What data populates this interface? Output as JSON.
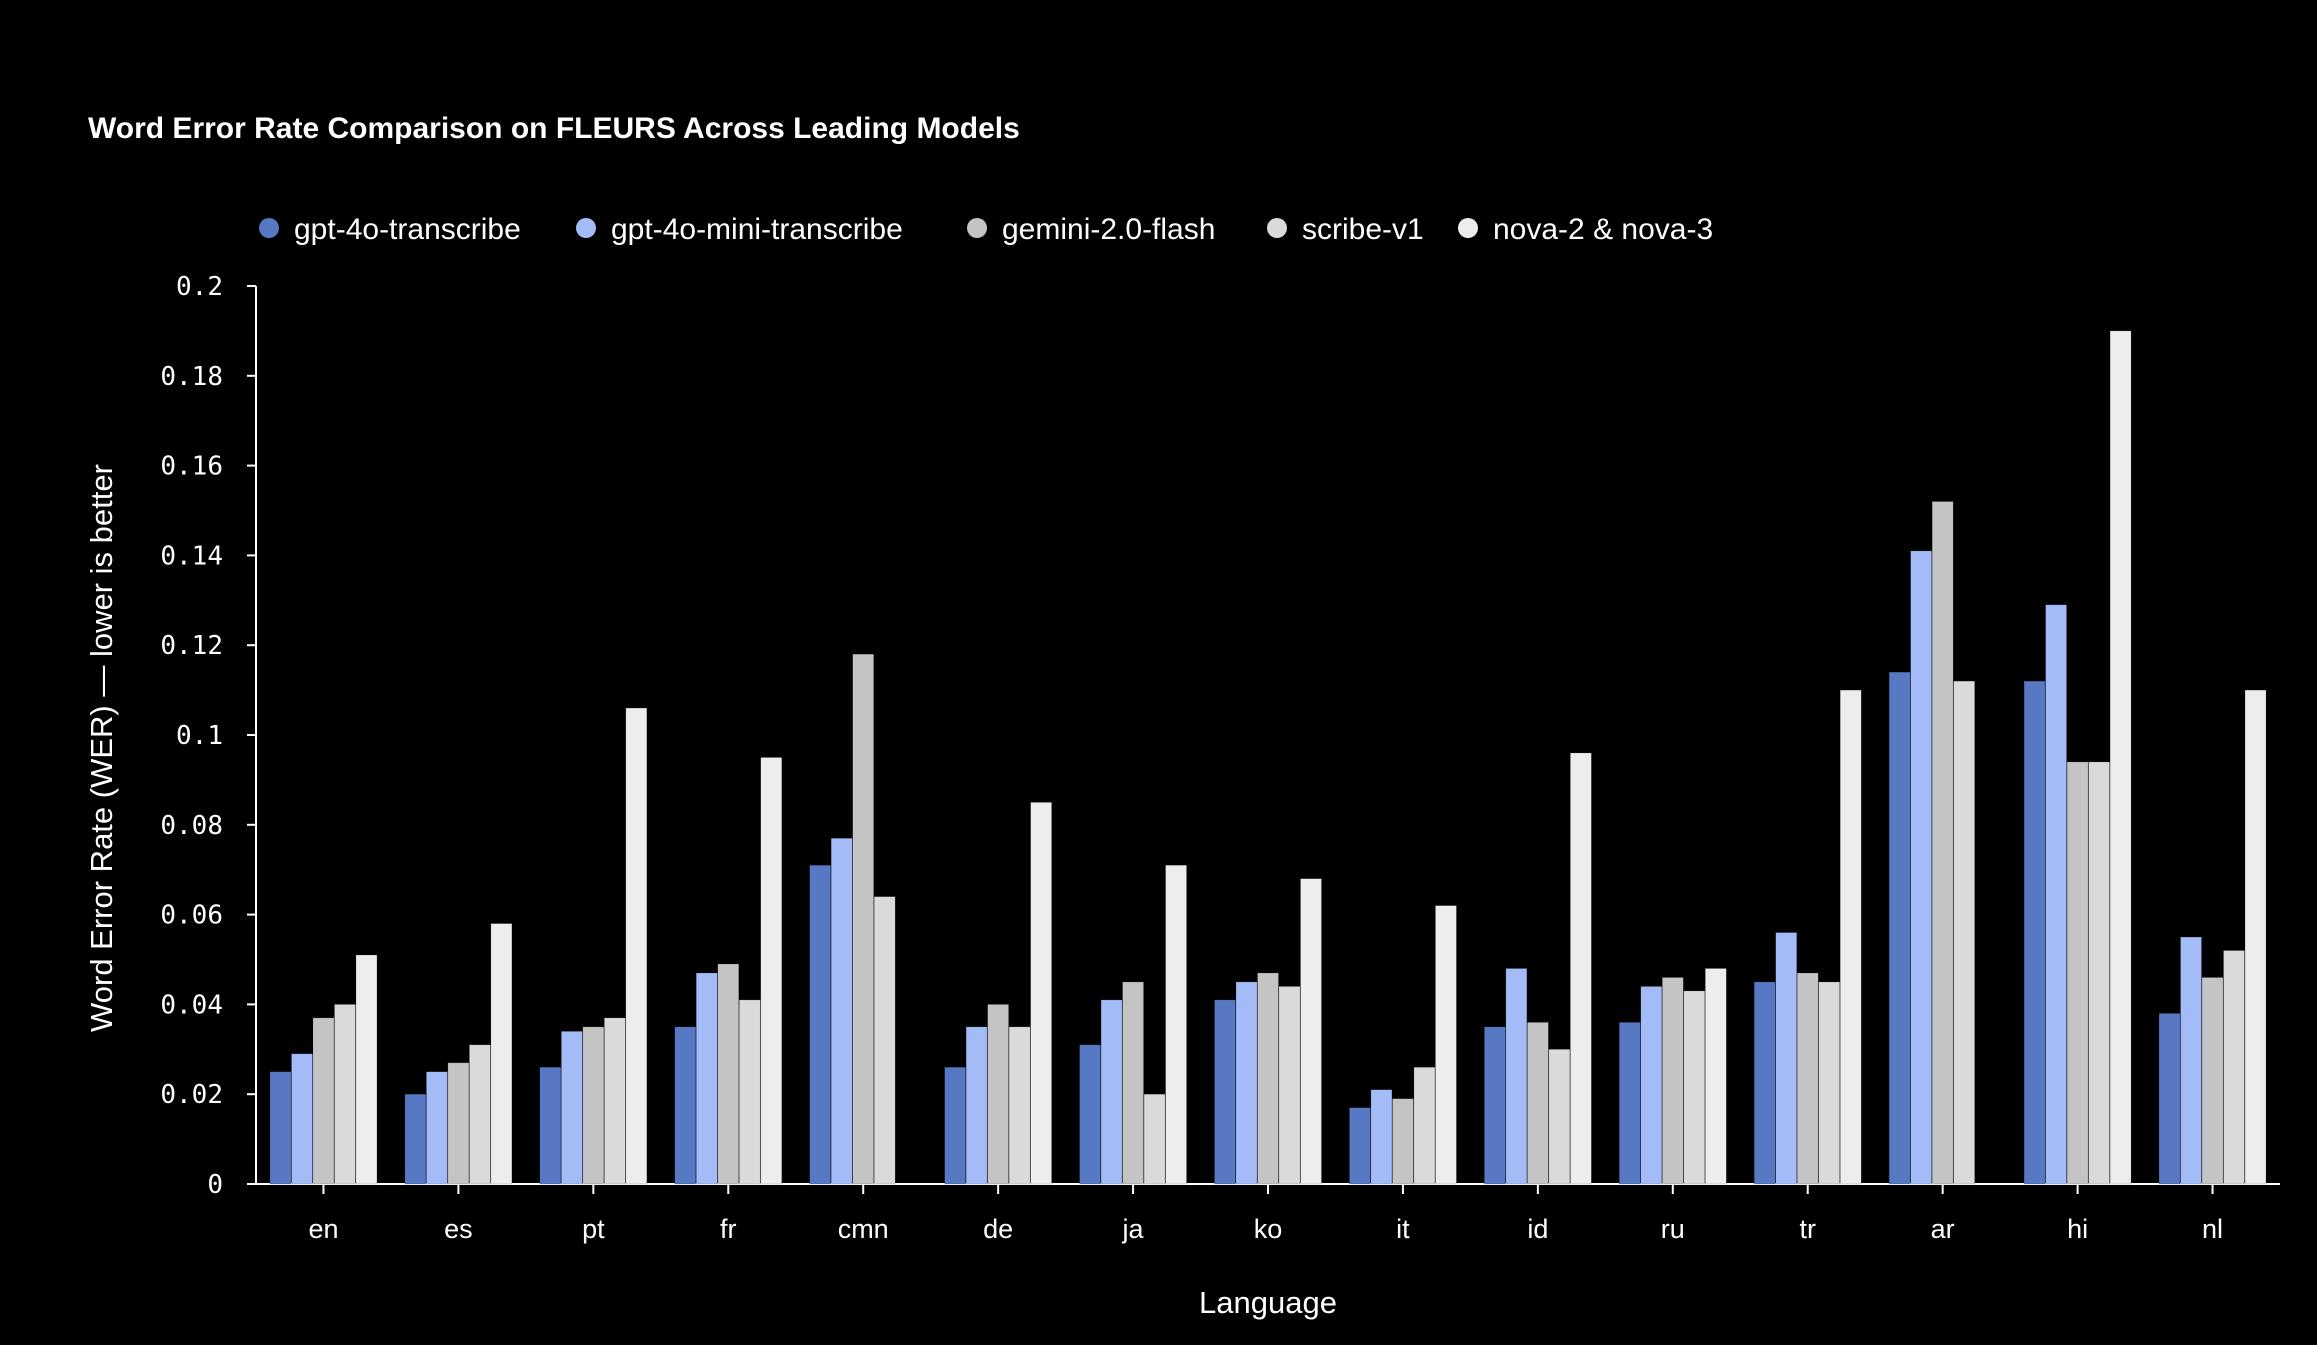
{
  "chart_data": {
    "type": "bar",
    "title": "Word Error Rate Comparison on FLEURS Across Leading Models",
    "xlabel": "Language",
    "ylabel": "Word Error Rate (WER) — lower is better",
    "ylim": [
      0,
      0.2
    ],
    "yticks": [
      "0",
      "0.02",
      "0.04",
      "0.06",
      "0.08",
      "0.1",
      "0.12",
      "0.14",
      "0.16",
      "0.18",
      "0.2"
    ],
    "grid": false,
    "legend_position": "top-left",
    "categories": [
      "en",
      "es",
      "pt",
      "fr",
      "cmn",
      "de",
      "ja",
      "ko",
      "it",
      "id",
      "ru",
      "tr",
      "ar",
      "hi",
      "nl"
    ],
    "series": [
      {
        "name": "gpt-4o-transcribe",
        "color": "#5779c4",
        "values": [
          0.025,
          0.02,
          0.026,
          0.035,
          0.071,
          0.026,
          0.031,
          0.041,
          0.017,
          0.035,
          0.036,
          0.045,
          0.114,
          0.112,
          0.038
        ]
      },
      {
        "name": "gpt-4o-mini-transcribe",
        "color": "#a3bcf7",
        "values": [
          0.029,
          0.025,
          0.034,
          0.047,
          0.077,
          0.035,
          0.041,
          0.045,
          0.021,
          0.048,
          0.044,
          0.056,
          0.141,
          0.129,
          0.055
        ]
      },
      {
        "name": "gemini-2.0-flash",
        "color": "#c4c4c4",
        "values": [
          0.037,
          0.027,
          0.035,
          0.049,
          0.118,
          0.04,
          0.045,
          0.047,
          0.019,
          0.036,
          0.046,
          0.047,
          0.152,
          0.094,
          0.046
        ]
      },
      {
        "name": "scribe-v1",
        "color": "#dadada",
        "values": [
          0.04,
          0.031,
          0.037,
          0.041,
          0.064,
          0.035,
          0.02,
          0.044,
          0.026,
          0.03,
          0.043,
          0.045,
          0.112,
          0.094,
          0.052
        ]
      },
      {
        "name": "nova-2 & nova-3",
        "color": "#ededed",
        "values": [
          0.051,
          0.058,
          0.106,
          0.095,
          null,
          0.085,
          0.071,
          0.068,
          0.062,
          0.096,
          0.048,
          0.11,
          null,
          0.19,
          0.11
        ]
      }
    ]
  }
}
